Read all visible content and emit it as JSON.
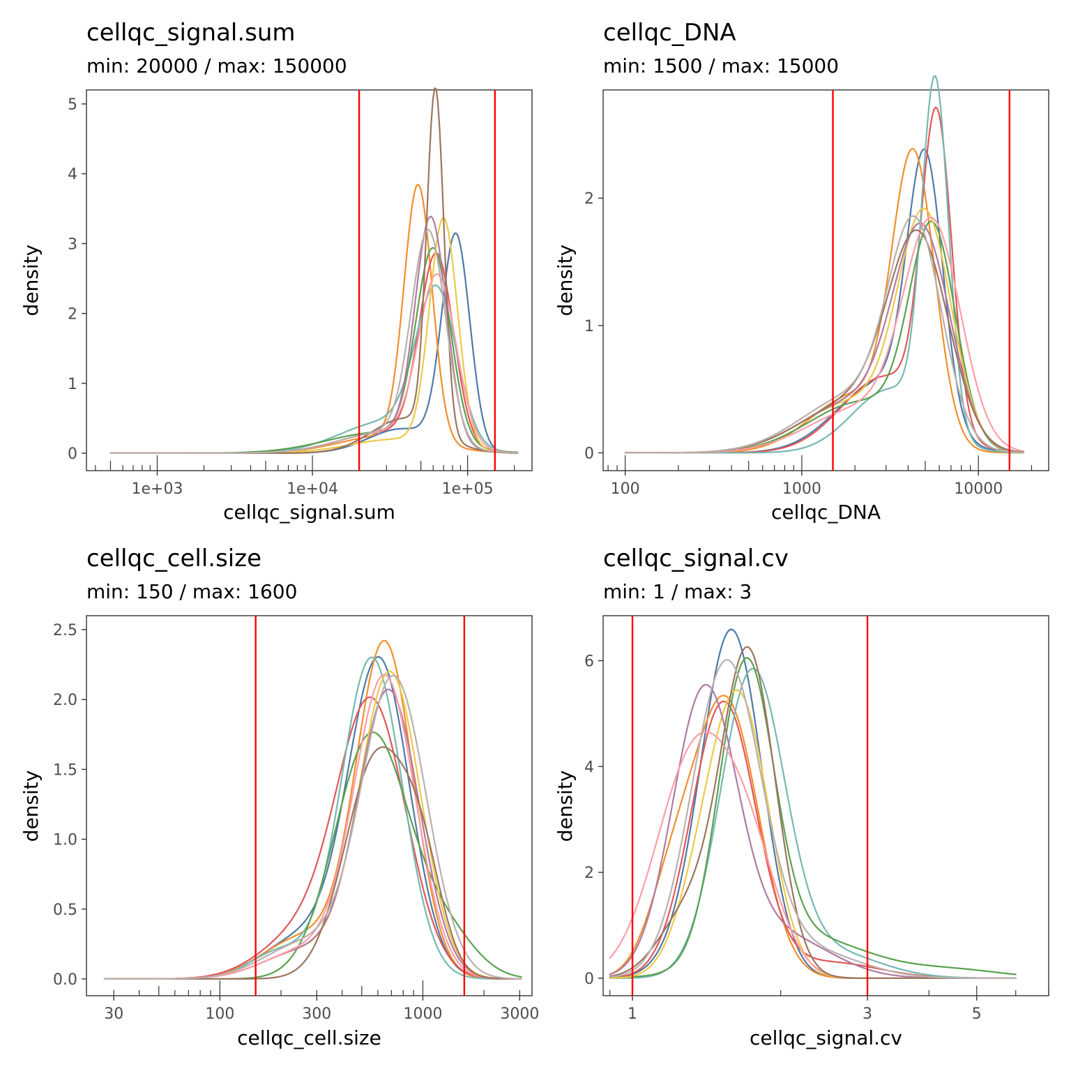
{
  "palette": [
    "#4e79a7",
    "#f28e2b",
    "#e15759",
    "#76b7b2",
    "#59a14f",
    "#edc948",
    "#b07aa1",
    "#ff9da7",
    "#9c755f",
    "#bab0ac"
  ],
  "threshold_color": "#ff0000",
  "chart_data": [
    {
      "type": "line",
      "title": "cellqc_signal.sum",
      "subtitle": "min: 20000 / max: 150000",
      "xlabel": "cellqc_signal.sum",
      "ylabel": "density",
      "x_scale": "log10",
      "xlim": [
        350,
        260000
      ],
      "ylim": [
        -0.25,
        5.2
      ],
      "x_ticks": [
        1000,
        10000,
        100000
      ],
      "x_tick_labels": [
        "1e+03",
        "1e+04",
        "1e+05"
      ],
      "y_ticks": [
        0,
        1,
        2,
        3,
        4,
        5
      ],
      "y_tick_labels": [
        "0",
        "1",
        "2",
        "3",
        "4",
        "5"
      ],
      "thresholds": [
        20000,
        150000
      ],
      "support": [
        500,
        210000
      ],
      "series": [
        {
          "color": "#4e79a7",
          "peaks": [
            [
              84000,
              3.05,
              0.09
            ],
            [
              38000,
              0.35,
              0.22
            ]
          ]
        },
        {
          "color": "#f28e2b",
          "peaks": [
            [
              48000,
              3.65,
              0.09
            ],
            [
              30000,
              0.25,
              0.3
            ]
          ]
        },
        {
          "color": "#e15759",
          "peaks": [
            [
              63000,
              2.7,
              0.11
            ],
            [
              30000,
              0.3,
              0.3
            ]
          ]
        },
        {
          "color": "#76b7b2",
          "peaks": [
            [
              63000,
              2.15,
              0.13
            ],
            [
              30000,
              0.45,
              0.3
            ]
          ]
        },
        {
          "color": "#59a14f",
          "peaks": [
            [
              60000,
              2.75,
              0.11
            ],
            [
              28000,
              0.3,
              0.35
            ]
          ]
        },
        {
          "color": "#edc948",
          "peaks": [
            [
              70000,
              3.25,
              0.09
            ],
            [
              35000,
              0.2,
              0.3
            ]
          ]
        },
        {
          "color": "#b07aa1",
          "peaks": [
            [
              58000,
              3.2,
              0.1
            ],
            [
              30000,
              0.3,
              0.3
            ]
          ]
        },
        {
          "color": "#ff9da7",
          "peaks": [
            [
              64000,
              2.4,
              0.12
            ],
            [
              30000,
              0.3,
              0.3
            ]
          ]
        },
        {
          "color": "#9c755f",
          "peaks": [
            [
              62000,
              4.9,
              0.055
            ],
            [
              40000,
              0.5,
              0.22
            ]
          ]
        },
        {
          "color": "#bab0ac",
          "peaks": [
            [
              56000,
              3.0,
              0.11
            ],
            [
              30000,
              0.3,
              0.3
            ]
          ]
        }
      ]
    },
    {
      "type": "line",
      "title": "cellqc_DNA",
      "subtitle": "min: 1500 / max: 15000",
      "xlabel": "cellqc_DNA",
      "ylabel": "density",
      "x_scale": "log10",
      "xlim": [
        75,
        25000
      ],
      "ylim": [
        -0.14,
        2.85
      ],
      "x_ticks": [
        100,
        1000,
        10000
      ],
      "x_tick_labels": [
        "100",
        "1000",
        "10000"
      ],
      "y_ticks": [
        0,
        1,
        2
      ],
      "y_tick_labels": [
        "0",
        "1",
        "2"
      ],
      "thresholds": [
        1500,
        15000
      ],
      "support": [
        100,
        18000
      ],
      "series": [
        {
          "color": "#4e79a7",
          "peaks": [
            [
              5000,
              2.05,
              0.1
            ],
            [
              2800,
              0.55,
              0.25
            ]
          ]
        },
        {
          "color": "#f28e2b",
          "peaks": [
            [
              4300,
              2.2,
              0.12
            ],
            [
              2000,
              0.45,
              0.25
            ]
          ]
        },
        {
          "color": "#e15759",
          "peaks": [
            [
              5800,
              2.4,
              0.085
            ],
            [
              3000,
              0.6,
              0.25
            ]
          ]
        },
        {
          "color": "#76b7b2",
          "peaks": [
            [
              5700,
              2.7,
              0.075
            ],
            [
              3200,
              0.5,
              0.22
            ]
          ]
        },
        {
          "color": "#59a14f",
          "peaks": [
            [
              5500,
              1.65,
              0.13
            ],
            [
              2200,
              0.4,
              0.3
            ]
          ]
        },
        {
          "color": "#edc948",
          "peaks": [
            [
              5000,
              1.75,
              0.15
            ],
            [
              2000,
              0.4,
              0.3
            ]
          ]
        },
        {
          "color": "#b07aa1",
          "peaks": [
            [
              4800,
              1.62,
              0.16
            ],
            [
              2000,
              0.4,
              0.3
            ]
          ]
        },
        {
          "color": "#ff9da7",
          "peaks": [
            [
              5500,
              1.7,
              0.16
            ],
            [
              2200,
              0.35,
              0.3
            ]
          ]
        },
        {
          "color": "#9c755f",
          "peaks": [
            [
              4600,
              1.55,
              0.17
            ],
            [
              2000,
              0.4,
              0.3
            ]
          ]
        },
        {
          "color": "#bab0ac",
          "peaks": [
            [
              4400,
              1.62,
              0.15
            ],
            [
              2000,
              0.45,
              0.3
            ]
          ]
        }
      ]
    },
    {
      "type": "line",
      "title": "cellqc_cell.size",
      "subtitle": "min: 150 / max: 1600",
      "xlabel": "cellqc_cell.size",
      "ylabel": "density",
      "x_scale": "log10",
      "xlim": [
        22,
        3450
      ],
      "ylim": [
        -0.12,
        2.6
      ],
      "x_ticks": [
        30,
        100,
        300,
        1000,
        3000
      ],
      "x_tick_labels": [
        "30",
        "100",
        "300",
        "1000",
        "3000"
      ],
      "y_ticks": [
        0.0,
        0.5,
        1.0,
        1.5,
        2.0,
        2.5
      ],
      "y_tick_labels": [
        "0.0",
        "0.5",
        "1.0",
        "1.5",
        "2.0",
        "2.5"
      ],
      "thresholds": [
        150,
        1600
      ],
      "support": [
        27,
        3050
      ],
      "series": [
        {
          "color": "#4e79a7",
          "peaks": [
            [
              610,
              2.25,
              0.15
            ],
            [
              260,
              0.3,
              0.2
            ]
          ]
        },
        {
          "color": "#f28e2b",
          "peaks": [
            [
              650,
              2.38,
              0.14
            ],
            [
              260,
              0.3,
              0.2
            ]
          ]
        },
        {
          "color": "#e15759",
          "peaks": [
            [
              560,
              1.95,
              0.17
            ],
            [
              250,
              0.3,
              0.2
            ]
          ]
        },
        {
          "color": "#76b7b2",
          "peaks": [
            [
              560,
              2.3,
              0.15
            ],
            [
              200,
              0.2,
              0.15
            ]
          ]
        },
        {
          "color": "#59a14f",
          "peaks": [
            [
              560,
              1.75,
              0.18
            ],
            [
              1300,
              0.3,
              0.15
            ]
          ]
        },
        {
          "color": "#edc948",
          "peaks": [
            [
              690,
              2.18,
              0.15
            ],
            [
              260,
              0.2,
              0.2
            ]
          ]
        },
        {
          "color": "#b07aa1",
          "peaks": [
            [
              680,
              2.05,
              0.15
            ],
            [
              260,
              0.2,
              0.2
            ]
          ]
        },
        {
          "color": "#ff9da7",
          "peaks": [
            [
              650,
              2.15,
              0.15
            ],
            [
              260,
              0.2,
              0.2
            ]
          ]
        },
        {
          "color": "#9c755f",
          "peaks": [
            [
              600,
              1.6,
              0.16
            ],
            [
              1000,
              0.55,
              0.1
            ]
          ]
        },
        {
          "color": "#bab0ac",
          "peaks": [
            [
              720,
              2.15,
              0.16
            ],
            [
              260,
              0.25,
              0.2
            ]
          ]
        }
      ]
    },
    {
      "type": "line",
      "title": "cellqc_signal.cv",
      "subtitle": "min: 1 / max: 3",
      "xlabel": "cellqc_signal.cv",
      "ylabel": "density",
      "x_scale": "log10",
      "xlim": [
        0.872,
        7.0
      ],
      "ylim": [
        -0.33,
        6.85
      ],
      "x_ticks": [
        1,
        3,
        5
      ],
      "x_tick_labels": [
        "1",
        "3",
        "5"
      ],
      "y_ticks": [
        0,
        2,
        4,
        6
      ],
      "y_tick_labels": [
        "0",
        "2",
        "4",
        "6"
      ],
      "thresholds": [
        1,
        3
      ],
      "support": [
        0.9,
        6.0
      ],
      "series": [
        {
          "color": "#4e79a7",
          "peaks": [
            [
              1.6,
              6.3,
              0.06
            ],
            [
              1.35,
              0.6,
              0.06
            ]
          ]
        },
        {
          "color": "#f28e2b",
          "peaks": [
            [
              1.55,
              5.2,
              0.065
            ],
            [
              1.2,
              1.5,
              0.05
            ]
          ]
        },
        {
          "color": "#e15759",
          "peaks": [
            [
              1.53,
              5.2,
              0.065
            ],
            [
              2.5,
              0.3,
              0.1
            ]
          ]
        },
        {
          "color": "#76b7b2",
          "peaks": [
            [
              1.75,
              5.7,
              0.065
            ],
            [
              2.5,
              0.5,
              0.1
            ]
          ]
        },
        {
          "color": "#59a14f",
          "peaks": [
            [
              1.7,
              5.5,
              0.055
            ],
            [
              2.2,
              0.8,
              0.13
            ],
            [
              4.5,
              0.15,
              0.1
            ]
          ]
        },
        {
          "color": "#edc948",
          "peaks": [
            [
              1.65,
              5.2,
              0.06
            ],
            [
              1.35,
              1.0,
              0.05
            ]
          ]
        },
        {
          "color": "#b07aa1",
          "peaks": [
            [
              1.4,
              5.3,
              0.065
            ],
            [
              2.0,
              0.8,
              0.1
            ]
          ]
        },
        {
          "color": "#ff9da7",
          "peaks": [
            [
              1.35,
              4.3,
              0.08
            ],
            [
              1.75,
              1.6,
              0.06
            ]
          ]
        },
        {
          "color": "#9c755f",
          "peaks": [
            [
              1.72,
              6.1,
              0.055
            ],
            [
              1.3,
              1.2,
              0.06
            ]
          ]
        },
        {
          "color": "#bab0ac",
          "peaks": [
            [
              1.55,
              5.9,
              0.07
            ],
            [
              2.3,
              0.5,
              0.1
            ]
          ]
        }
      ]
    }
  ]
}
